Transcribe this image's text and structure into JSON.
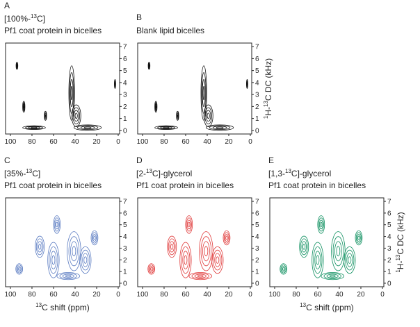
{
  "figure": {
    "panels": [
      {
        "letter": "A",
        "title": [
          [
            {
              "text": "[100%-"
            },
            {
              "text": "13",
              "sup": true
            },
            {
              "text": "C]"
            }
          ],
          [
            {
              "text": "Pf1 coat protein in bicelles"
            }
          ]
        ],
        "color": "#111111",
        "show_x_label": false,
        "show_y_label": false
      },
      {
        "letter": "B",
        "title": [
          [
            {
              "text": "Blank lipid bicelles"
            }
          ]
        ],
        "color": "#111111",
        "show_x_label": false,
        "show_y_label": true
      },
      {
        "letter": "C",
        "title": [
          [
            {
              "text": "[35%-"
            },
            {
              "text": "13",
              "sup": true
            },
            {
              "text": "C]"
            }
          ],
          [
            {
              "text": "Pf1 coat protein in bicelles"
            }
          ]
        ],
        "color": "#5b7cc2",
        "show_x_label": true,
        "show_y_label": false
      },
      {
        "letter": "D",
        "title": [
          [
            {
              "text": "[2-"
            },
            {
              "text": "13",
              "sup": true
            },
            {
              "text": "C]-glycerol"
            }
          ],
          [
            {
              "text": "Pf1 coat protein in bicelles"
            }
          ]
        ],
        "color": "#e03a3a",
        "show_x_label": false,
        "show_y_label": false
      },
      {
        "letter": "E",
        "title": [
          [
            {
              "text": "[1,3-"
            },
            {
              "text": "13",
              "sup": true
            },
            {
              "text": "C]-glycerol"
            }
          ],
          [
            {
              "text": "Pf1 coat protein in bicelles"
            }
          ]
        ],
        "color": "#0f9060",
        "show_x_label": true,
        "show_y_label": true
      }
    ],
    "xlim": [
      104.5,
      -1.3
    ],
    "ylim": [
      -0.3,
      7.3
    ],
    "xticks": [
      100,
      80,
      60,
      40,
      20,
      0
    ],
    "yticks": [
      0,
      1,
      2,
      3,
      4,
      5,
      6,
      7
    ],
    "x_label": [
      {
        "text": "13",
        "sup": true
      },
      {
        "text": "C shift (ppm)"
      }
    ],
    "y_label": [
      {
        "text": "1",
        "sup": true
      },
      {
        "text": "H-"
      },
      {
        "text": "13",
        "sup": true
      },
      {
        "text": "C DC (kHz)"
      }
    ]
  }
}
